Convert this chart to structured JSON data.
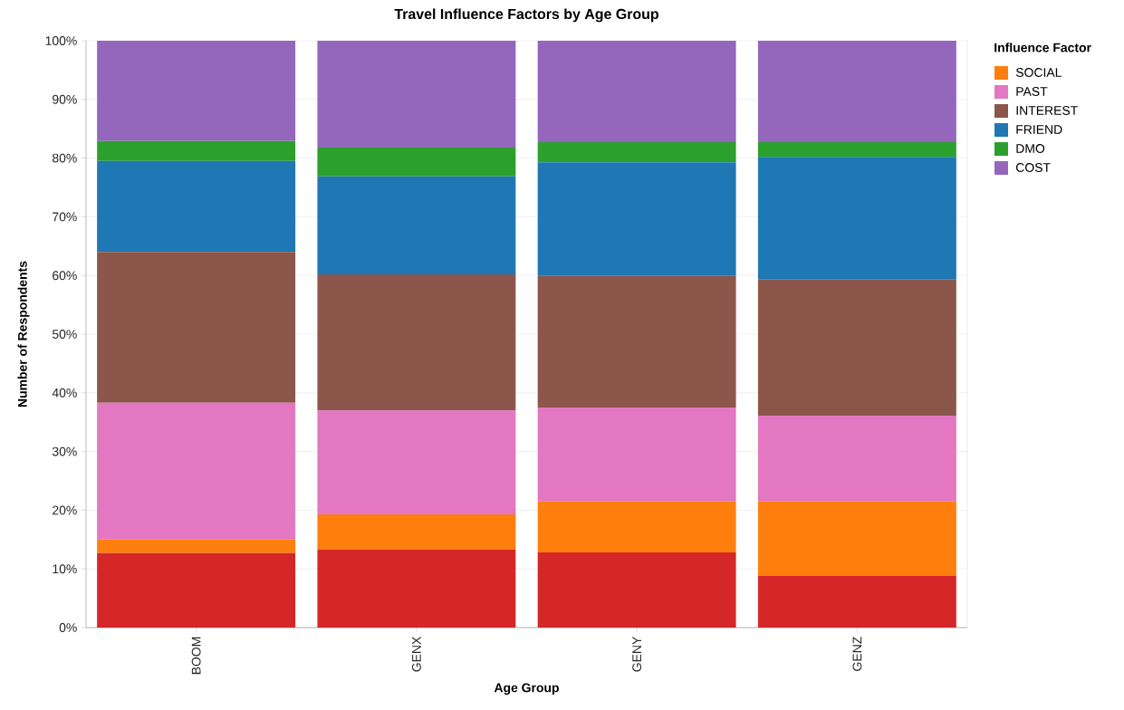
{
  "chart_data": {
    "type": "bar",
    "stacked": true,
    "title": "Travel Influence Factors by Age Group",
    "xlabel": "Age Group",
    "ylabel": "Number of Respondents",
    "legend_title": "Influence Factor",
    "legend": "right",
    "grid": "y",
    "categories": [
      "BOOM",
      "GENX",
      "GENY",
      "GENZ"
    ],
    "ylim": [
      0,
      100
    ],
    "yticks": [
      {
        "value": 0,
        "label": "0%"
      },
      {
        "value": 10,
        "label": "10%"
      },
      {
        "value": 20,
        "label": "20%"
      },
      {
        "value": 30,
        "label": "30%"
      },
      {
        "value": 40,
        "label": "40%"
      },
      {
        "value": 50,
        "label": "50%"
      },
      {
        "value": 60,
        "label": "60%"
      },
      {
        "value": 70,
        "label": "70%"
      },
      {
        "value": 80,
        "label": "80%"
      },
      {
        "value": 90,
        "label": "90%"
      },
      {
        "value": 100,
        "label": "100%"
      }
    ],
    "series": [
      {
        "color": "#d62728",
        "values": [
          12.7,
          13.3,
          12.8,
          8.8
        ]
      },
      {
        "name": "SOCIAL",
        "color": "#ff7f0e",
        "values": [
          2.3,
          6.0,
          8.7,
          12.7
        ]
      },
      {
        "name": "PAST",
        "color": "#e377c2",
        "values": [
          23.3,
          17.7,
          16.0,
          14.6
        ]
      },
      {
        "name": "INTEREST",
        "color": "#8c564b",
        "values": [
          25.7,
          23.2,
          22.4,
          23.2
        ]
      },
      {
        "name": "FRIEND",
        "color": "#1f77b4",
        "values": [
          15.5,
          16.7,
          19.4,
          20.9
        ]
      },
      {
        "name": "DMO",
        "color": "#2ca02c",
        "values": [
          3.4,
          4.9,
          3.4,
          2.5
        ]
      },
      {
        "name": "COST",
        "color": "#9467bd",
        "values": [
          17.1,
          18.2,
          17.3,
          17.3
        ]
      }
    ]
  }
}
